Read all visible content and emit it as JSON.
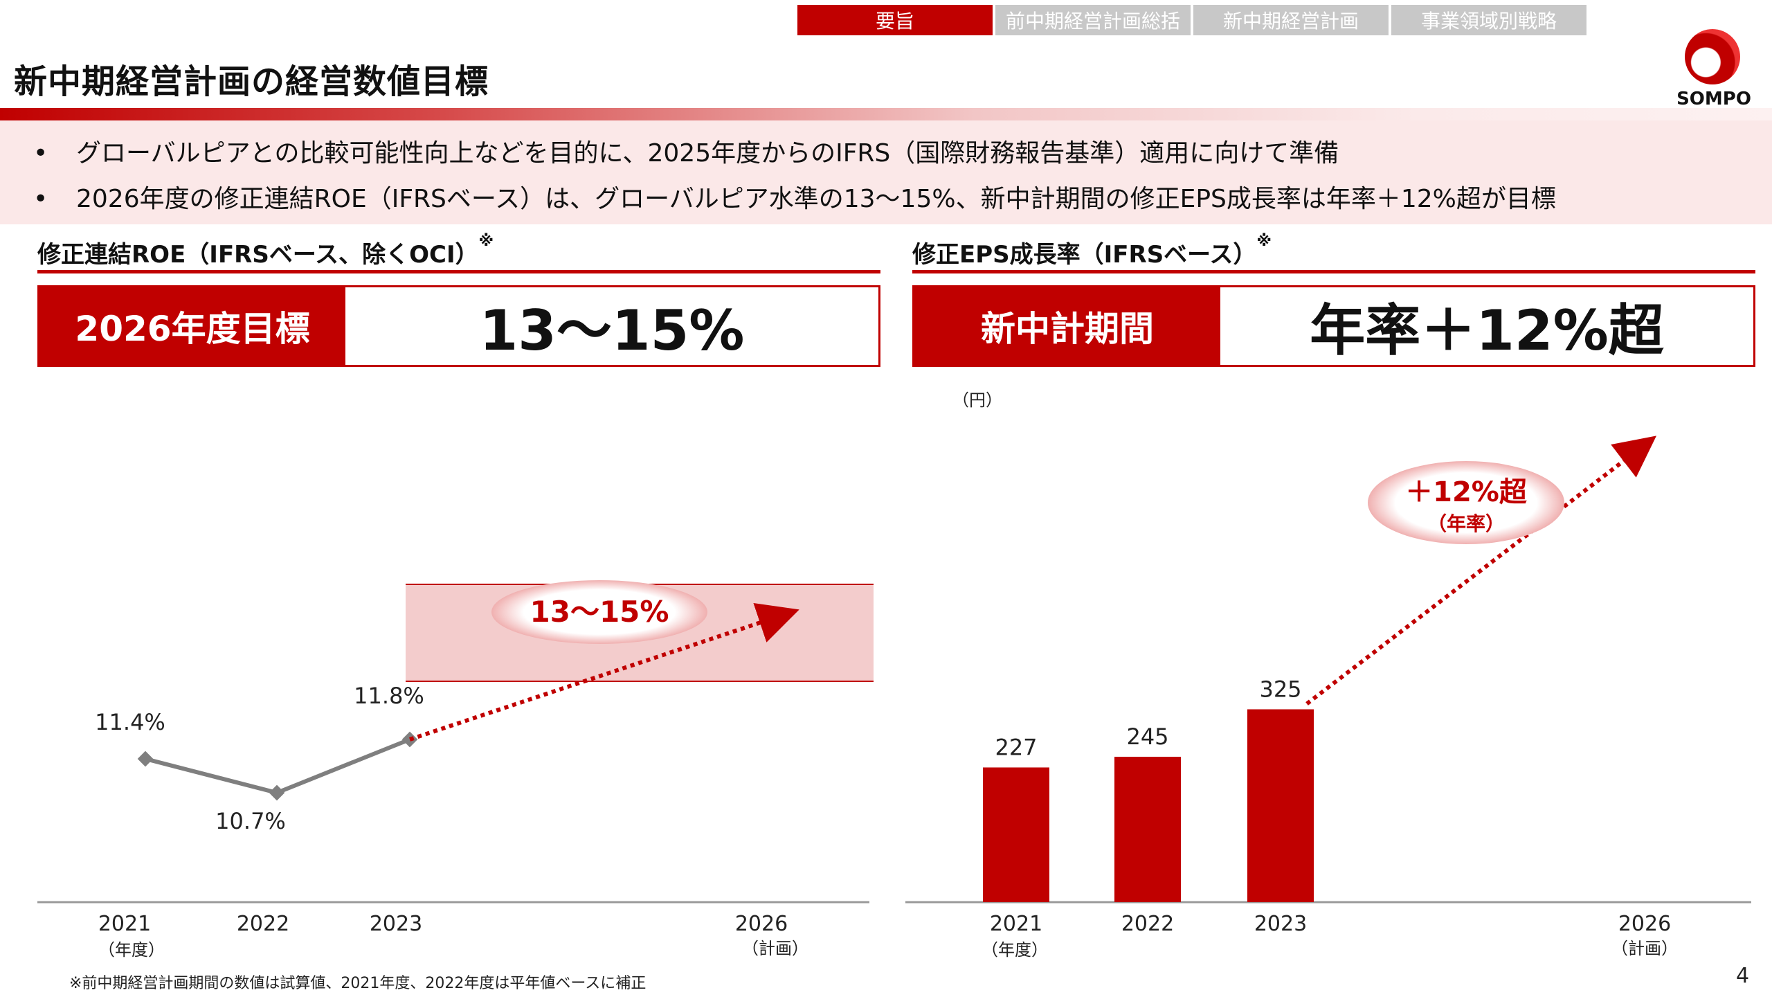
{
  "nav": {
    "tabs": [
      {
        "label": "要旨",
        "active": true
      },
      {
        "label": "前中期経営計画総括",
        "active": false
      },
      {
        "label": "新中期経営計画",
        "active": false
      },
      {
        "label": "事業領域別戦略",
        "active": false
      }
    ]
  },
  "header": {
    "title": "新中期経営計画の経営数値目標",
    "logo_text": "SOMPO"
  },
  "bullets": [
    "グローバルピアとの比較可能性向上などを目的に、2025年度からのIFRS（国際財務報告基準）適用に向けて準備",
    "2026年度の修正連結ROE（IFRSベース）は、グローバルピア水準の13～15%、新中計期間の修正EPS成長率は年率＋12%超が目標"
  ],
  "left_panel": {
    "heading": "修正連結ROE（IFRSベース、除くOCI）",
    "heading_mark": "※",
    "target_label": "2026年度目標",
    "target_value": "13～15%",
    "band_label": "13～15%",
    "year_unit": "（年度）",
    "plan_note": "（計画）"
  },
  "right_panel": {
    "heading": "修正EPS成長率（IFRSベース）",
    "heading_mark": "※",
    "target_label": "新中計期間",
    "target_value": "年率＋12%超",
    "unit": "（円）",
    "growth_label": "＋12%超",
    "growth_sub": "（年率）",
    "year_unit": "（年度）",
    "plan_note": "（計画）"
  },
  "chart_data": [
    {
      "type": "line",
      "title": "修正連結ROE（IFRSベース、除くOCI）",
      "categories": [
        "2021",
        "2022",
        "2023",
        "2026"
      ],
      "series": [
        {
          "values": [
            11.4,
            10.7,
            11.8,
            null
          ]
        }
      ],
      "data_labels": [
        "11.4%",
        "10.7%",
        "11.8%"
      ],
      "target_range": [
        13,
        15
      ],
      "ylim": [
        8,
        16
      ],
      "colors": {
        "line": "#7f7f7f",
        "target": "#c00000",
        "band": "#f3cccc"
      }
    },
    {
      "type": "bar",
      "title": "修正EPS成長率（IFRSベース）",
      "categories": [
        "2021",
        "2022",
        "2023",
        "2026"
      ],
      "series": [
        {
          "values": [
            227,
            245,
            325,
            null
          ]
        }
      ],
      "data_labels": [
        "227",
        "245",
        "325"
      ],
      "ylim": [
        0,
        650
      ],
      "colors": {
        "bar": "#c00000"
      }
    }
  ],
  "footnote": "※前中期経営計画期間の数値は試算値、2021年度、2022年度は平年値ベースに補正",
  "page_number": "4"
}
